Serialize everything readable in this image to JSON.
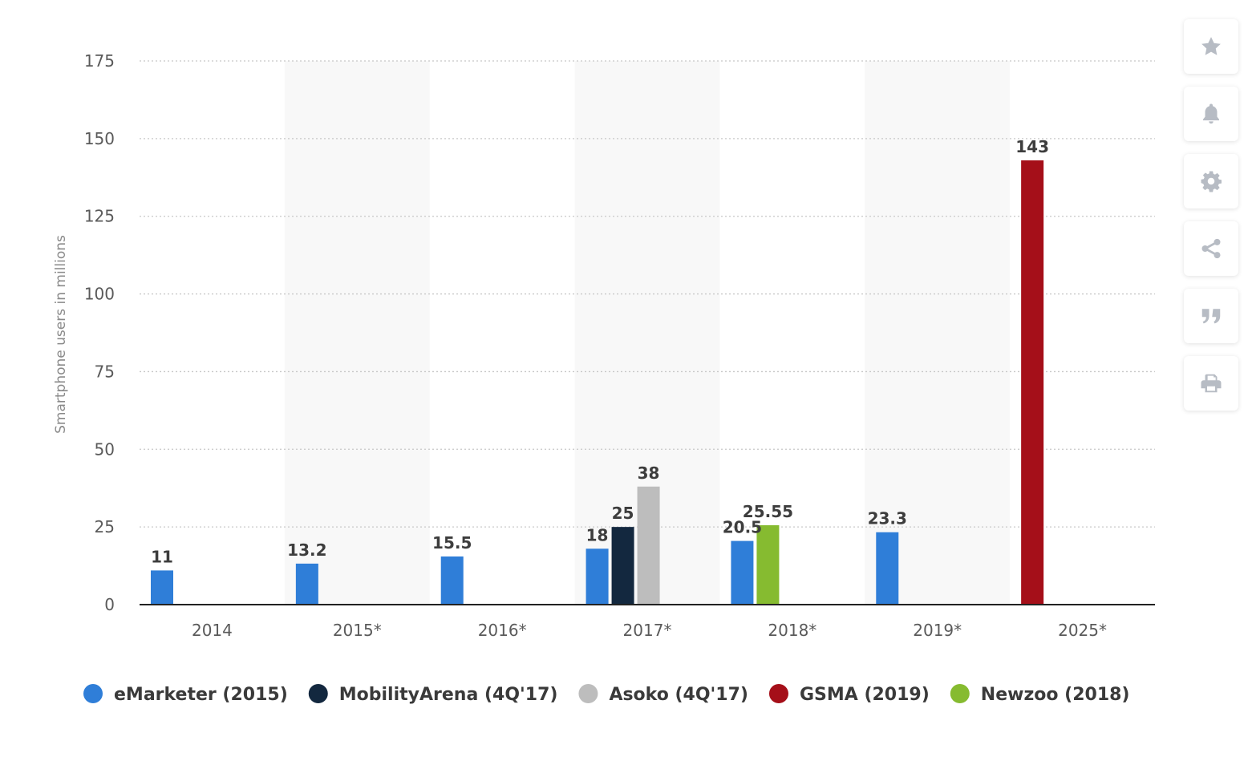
{
  "chart_data": {
    "type": "bar",
    "categories": [
      "2014",
      "2015*",
      "2016*",
      "2017*",
      "2018*",
      "2019*",
      "2025*"
    ],
    "ylabel": "Smartphone users in millions",
    "xlabel": "",
    "ylim": [
      0,
      175
    ],
    "yticks": [
      0,
      25,
      50,
      75,
      100,
      125,
      150,
      175
    ],
    "grid": "horizontal dotted",
    "legend_placement": "bottom",
    "series": [
      {
        "name": "eMarketer (2015)",
        "color": "#2f7ed8",
        "values": [
          11,
          13.2,
          15.5,
          18,
          20.5,
          23.3,
          null
        ],
        "labels": [
          "11",
          "13.2",
          "15.5",
          "18",
          "20.5",
          "23.3",
          null
        ]
      },
      {
        "name": "MobilityArena (4Q'17)",
        "color": "#13283f",
        "values": [
          null,
          null,
          null,
          25,
          null,
          null,
          null
        ],
        "labels": [
          null,
          null,
          null,
          "25",
          null,
          null,
          null
        ]
      },
      {
        "name": "Asoko (4Q'17)",
        "color": "#bdbdbd",
        "values": [
          null,
          null,
          null,
          38,
          null,
          null,
          null
        ],
        "labels": [
          null,
          null,
          null,
          "38",
          null,
          null,
          null
        ]
      },
      {
        "name": "GSMA (2019)",
        "color": "#a50f19",
        "values": [
          null,
          null,
          null,
          null,
          null,
          null,
          143
        ],
        "labels": [
          null,
          null,
          null,
          null,
          null,
          null,
          "143"
        ]
      },
      {
        "name": "Newzoo (2018)",
        "color": "#86bb30",
        "values": [
          null,
          null,
          null,
          null,
          25.55,
          null,
          null
        ],
        "labels": [
          null,
          null,
          null,
          null,
          "25.55",
          null,
          null
        ]
      }
    ]
  },
  "toolbar": [
    {
      "icon": "star-icon",
      "name": "favorite-button"
    },
    {
      "icon": "bell-icon",
      "name": "notification-button"
    },
    {
      "icon": "gear-icon",
      "name": "settings-button"
    },
    {
      "icon": "share-icon",
      "name": "share-button"
    },
    {
      "icon": "quote-icon",
      "name": "cite-button"
    },
    {
      "icon": "print-icon",
      "name": "print-button"
    }
  ],
  "icon_color": "#b7bcc4"
}
